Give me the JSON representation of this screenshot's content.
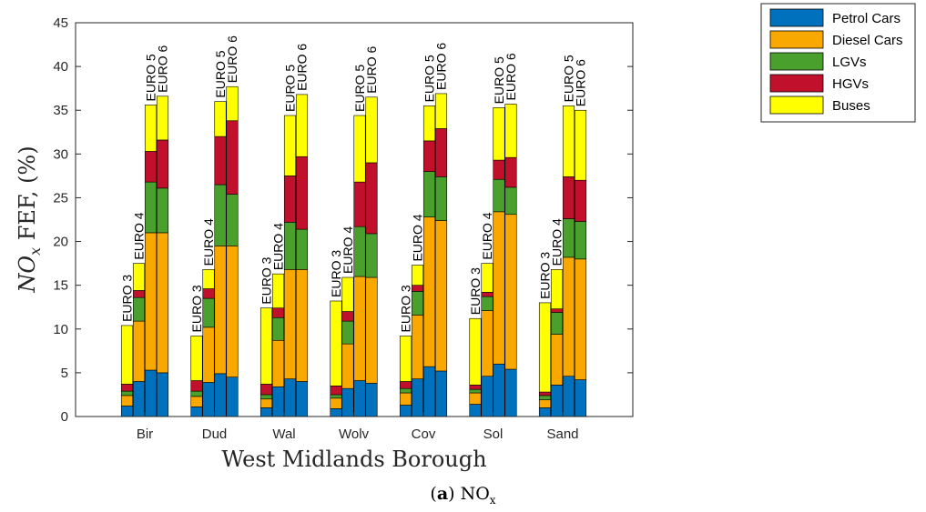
{
  "chart_data": {
    "type": "bar",
    "stacked": true,
    "xlabel": "West Midlands Borough",
    "ylabel": "NO_x FEF, (%)",
    "ylim": [
      0,
      45
    ],
    "yticks": [
      0,
      5,
      10,
      15,
      20,
      25,
      30,
      35,
      40,
      45
    ],
    "categories": [
      "Bir",
      "Dud",
      "Wal",
      "Wolv",
      "Cov",
      "Sol",
      "Sand"
    ],
    "standards": [
      "EURO 3",
      "EURO 4",
      "EURO 5",
      "EURO 6"
    ],
    "legend_position": "outside-top-right",
    "grid": false,
    "series": [
      {
        "name": "Petrol Cars",
        "color": "#0072BD",
        "values": [
          [
            1.2,
            4.0,
            5.3,
            5.0
          ],
          [
            1.1,
            3.9,
            4.9,
            4.5
          ],
          [
            1.0,
            3.4,
            4.3,
            4.0
          ],
          [
            0.9,
            3.2,
            4.1,
            3.8
          ],
          [
            1.3,
            4.3,
            5.7,
            5.2
          ],
          [
            1.4,
            4.6,
            6.0,
            5.4
          ],
          [
            1.0,
            3.6,
            4.6,
            4.2
          ]
        ]
      },
      {
        "name": "Diesel Cars",
        "color": "#F9A800",
        "values": [
          [
            1.2,
            6.9,
            15.7,
            16.0
          ],
          [
            1.2,
            6.3,
            14.6,
            15.0
          ],
          [
            1.0,
            5.3,
            12.5,
            12.8
          ],
          [
            1.2,
            5.1,
            11.9,
            12.1
          ],
          [
            1.4,
            7.3,
            17.1,
            17.2
          ],
          [
            1.3,
            7.5,
            17.4,
            17.7
          ],
          [
            0.9,
            5.8,
            13.6,
            13.8
          ]
        ]
      },
      {
        "name": "LGVs",
        "color": "#4AA02C",
        "values": [
          [
            0.5,
            2.7,
            5.8,
            5.1
          ],
          [
            0.6,
            3.3,
            7.0,
            5.9
          ],
          [
            0.5,
            2.6,
            5.4,
            4.6
          ],
          [
            0.4,
            2.6,
            5.7,
            5.0
          ],
          [
            0.5,
            2.7,
            5.2,
            5.0
          ],
          [
            0.4,
            1.6,
            3.7,
            3.1
          ],
          [
            0.5,
            2.5,
            4.4,
            4.3
          ]
        ]
      },
      {
        "name": "HGVs",
        "color": "#C0102B",
        "values": [
          [
            0.8,
            0.8,
            3.5,
            5.5
          ],
          [
            1.2,
            1.1,
            5.5,
            8.4
          ],
          [
            1.2,
            1.1,
            5.3,
            8.3
          ],
          [
            1.0,
            1.1,
            5.1,
            8.1
          ],
          [
            0.8,
            0.7,
            3.5,
            5.5
          ],
          [
            0.5,
            0.5,
            2.2,
            3.4
          ],
          [
            0.4,
            0.4,
            4.8,
            4.7
          ]
        ]
      },
      {
        "name": "Buses",
        "color": "#FFFF00",
        "values": [
          [
            6.7,
            3.1,
            5.3,
            5.0
          ],
          [
            5.1,
            2.2,
            4.0,
            3.9
          ],
          [
            8.7,
            3.9,
            6.9,
            7.1
          ],
          [
            9.7,
            3.9,
            7.6,
            7.5
          ],
          [
            5.2,
            2.3,
            4.0,
            4.0
          ],
          [
            7.6,
            3.3,
            6.0,
            6.1
          ],
          [
            10.2,
            4.5,
            8.1,
            8.0
          ]
        ]
      }
    ]
  },
  "caption": {
    "letter": "a",
    "text": "NOx"
  }
}
